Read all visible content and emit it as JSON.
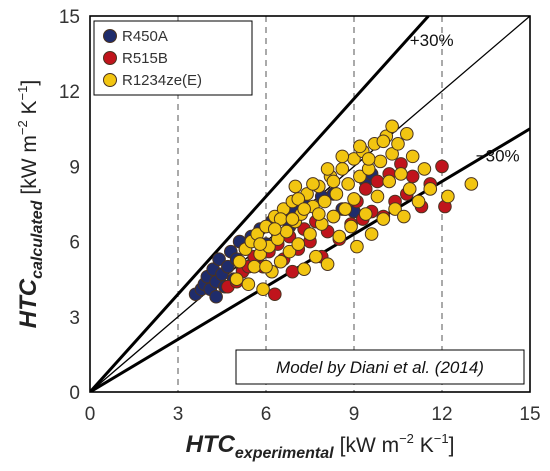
{
  "chart_data": {
    "type": "scatter",
    "x_axis": {
      "label": {
        "main": "HTC",
        "sub": "experimental",
        "unit": "[kW m",
        "exp1": "−2",
        "unit_mid": " K",
        "exp2": "−1",
        "unit_end": "]"
      },
      "lim": [
        0,
        15
      ],
      "ticks": [
        0,
        3,
        6,
        9,
        12,
        15
      ]
    },
    "y_axis": {
      "label": {
        "main": "HTC",
        "sub": "calculated",
        "unit": "[kW m",
        "exp1": "−2",
        "unit_mid": " K",
        "exp2": "−1",
        "unit_end": "]"
      },
      "lim": [
        0,
        15
      ],
      "ticks": [
        0,
        3,
        6,
        9,
        12,
        15
      ]
    },
    "grid": "vertical dashed at x = 3, 6, 9, 12",
    "legend_position": "top-left",
    "reference_lines": [
      {
        "label": "",
        "slope": 1.0,
        "style": "thin"
      },
      {
        "label": "+30%",
        "slope": 1.3,
        "style": "thick"
      },
      {
        "label": "−30%",
        "slope": 0.7,
        "style": "thick"
      }
    ],
    "annotation": "Model by Diani et al. (2014)",
    "series": [
      {
        "name": "R450A",
        "color": "#1F2C6B",
        "points": [
          [
            3.6,
            3.9
          ],
          [
            3.8,
            4.1
          ],
          [
            3.9,
            4.3
          ],
          [
            4.0,
            4.6
          ],
          [
            4.1,
            4.1
          ],
          [
            4.2,
            4.9
          ],
          [
            4.3,
            4.4
          ],
          [
            4.3,
            3.8
          ],
          [
            4.4,
            5.3
          ],
          [
            4.5,
            4.7
          ],
          [
            4.6,
            4.2
          ],
          [
            4.7,
            5.0
          ],
          [
            4.8,
            5.6
          ],
          [
            4.9,
            4.5
          ],
          [
            5.0,
            5.3
          ],
          [
            5.1,
            6.0
          ],
          [
            5.2,
            4.9
          ],
          [
            5.3,
            5.7
          ],
          [
            5.5,
            6.2
          ],
          [
            5.6,
            5.3
          ],
          [
            5.8,
            6.5
          ],
          [
            6.0,
            5.9
          ],
          [
            6.2,
            6.8
          ],
          [
            6.4,
            6.3
          ],
          [
            6.6,
            7.1
          ],
          [
            6.8,
            6.6
          ],
          [
            7.0,
            7.2
          ],
          [
            7.4,
            7.4
          ],
          [
            7.9,
            7.8
          ],
          [
            8.3,
            7.9
          ],
          [
            8.6,
            7.3
          ],
          [
            9.0,
            7.2
          ],
          [
            9.4,
            8.4
          ],
          [
            9.6,
            8.7
          ]
        ]
      },
      {
        "name": "R515B",
        "color": "#C0141C",
        "points": [
          [
            4.7,
            4.2
          ],
          [
            5.0,
            4.4
          ],
          [
            5.2,
            4.8
          ],
          [
            5.4,
            5.0
          ],
          [
            5.6,
            5.4
          ],
          [
            5.9,
            5.0
          ],
          [
            6.1,
            5.6
          ],
          [
            6.3,
            3.9
          ],
          [
            6.4,
            5.9
          ],
          [
            6.6,
            5.3
          ],
          [
            6.8,
            6.2
          ],
          [
            6.9,
            4.8
          ],
          [
            7.1,
            5.7
          ],
          [
            7.3,
            6.5
          ],
          [
            7.5,
            6.0
          ],
          [
            7.7,
            6.8
          ],
          [
            7.9,
            5.4
          ],
          [
            8.1,
            6.4
          ],
          [
            8.3,
            7.0
          ],
          [
            8.5,
            6.1
          ],
          [
            8.7,
            7.3
          ],
          [
            8.9,
            6.7
          ],
          [
            9.1,
            7.6
          ],
          [
            9.3,
            6.9
          ],
          [
            9.4,
            8.1
          ],
          [
            9.6,
            7.2
          ],
          [
            9.8,
            8.4
          ],
          [
            10.0,
            7.0
          ],
          [
            10.2,
            8.7
          ],
          [
            10.4,
            7.6
          ],
          [
            10.6,
            9.1
          ],
          [
            10.8,
            7.9
          ],
          [
            11.0,
            8.6
          ],
          [
            11.3,
            7.4
          ],
          [
            11.6,
            8.3
          ],
          [
            12.0,
            9.0
          ],
          [
            12.1,
            7.4
          ]
        ]
      },
      {
        "name": "R1234ze(E)",
        "color": "#F2C511",
        "points": [
          [
            5.0,
            4.5
          ],
          [
            5.1,
            5.2
          ],
          [
            5.3,
            5.7
          ],
          [
            5.4,
            4.3
          ],
          [
            5.5,
            6.0
          ],
          [
            5.6,
            5.0
          ],
          [
            5.7,
            6.3
          ],
          [
            5.8,
            5.5
          ],
          [
            5.9,
            4.1
          ],
          [
            6.0,
            6.6
          ],
          [
            6.1,
            5.8
          ],
          [
            6.2,
            4.8
          ],
          [
            6.3,
            7.0
          ],
          [
            6.4,
            6.1
          ],
          [
            6.5,
            5.2
          ],
          [
            6.6,
            7.3
          ],
          [
            6.7,
            6.4
          ],
          [
            6.8,
            5.6
          ],
          [
            6.9,
            7.6
          ],
          [
            7.0,
            6.8
          ],
          [
            7.0,
            8.2
          ],
          [
            7.1,
            5.9
          ],
          [
            7.2,
            7.1
          ],
          [
            7.3,
            4.9
          ],
          [
            7.4,
            7.9
          ],
          [
            7.5,
            6.3
          ],
          [
            7.6,
            7.4
          ],
          [
            7.7,
            5.4
          ],
          [
            7.8,
            8.2
          ],
          [
            7.9,
            6.7
          ],
          [
            8.0,
            7.6
          ],
          [
            8.1,
            5.1
          ],
          [
            8.2,
            8.6
          ],
          [
            8.3,
            7.0
          ],
          [
            8.4,
            7.9
          ],
          [
            8.5,
            6.2
          ],
          [
            8.6,
            8.9
          ],
          [
            8.7,
            7.3
          ],
          [
            8.8,
            8.3
          ],
          [
            8.9,
            6.6
          ],
          [
            9.0,
            9.3
          ],
          [
            9.0,
            7.7
          ],
          [
            9.1,
            5.8
          ],
          [
            9.2,
            8.6
          ],
          [
            9.3,
            9.6
          ],
          [
            9.4,
            7.1
          ],
          [
            9.5,
            8.9
          ],
          [
            9.6,
            6.3
          ],
          [
            9.7,
            9.9
          ],
          [
            9.8,
            7.8
          ],
          [
            9.9,
            9.2
          ],
          [
            10.0,
            6.9
          ],
          [
            10.1,
            10.2
          ],
          [
            10.2,
            8.4
          ],
          [
            10.3,
            9.5
          ],
          [
            10.4,
            7.3
          ],
          [
            10.5,
            9.9
          ],
          [
            10.6,
            8.7
          ],
          [
            10.7,
            7.0
          ],
          [
            10.8,
            10.3
          ],
          [
            10.9,
            8.1
          ],
          [
            11.0,
            9.4
          ],
          [
            11.2,
            7.6
          ],
          [
            11.4,
            8.9
          ],
          [
            11.6,
            8.1
          ],
          [
            12.2,
            7.8
          ],
          [
            13.0,
            8.3
          ],
          [
            6.0,
            5.0
          ],
          [
            6.5,
            6.9
          ],
          [
            7.1,
            7.7
          ],
          [
            7.6,
            8.3
          ],
          [
            8.1,
            8.9
          ],
          [
            8.6,
            9.4
          ],
          [
            7.3,
            7.3
          ],
          [
            7.8,
            7.1
          ],
          [
            8.3,
            8.4
          ],
          [
            5.8,
            5.9
          ],
          [
            6.3,
            6.5
          ],
          [
            6.9,
            6.9
          ],
          [
            9.2,
            9.8
          ],
          [
            9.5,
            9.3
          ],
          [
            10.0,
            10.0
          ],
          [
            10.3,
            10.6
          ]
        ]
      }
    ]
  }
}
